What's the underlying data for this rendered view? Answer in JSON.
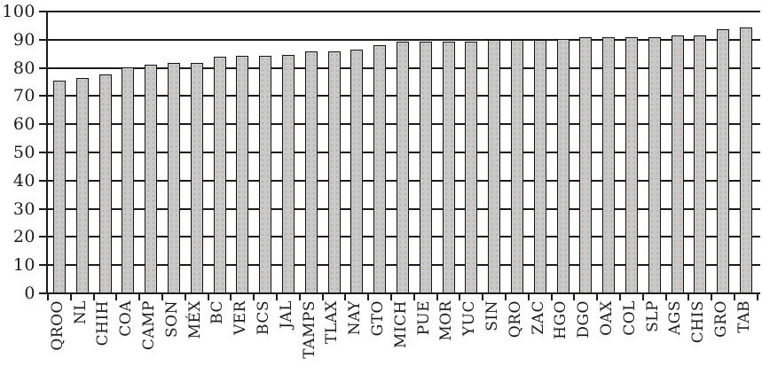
{
  "chart_data": {
    "type": "bar",
    "title": "",
    "xlabel": "",
    "ylabel": "",
    "categories": [
      "QROO",
      "NL",
      "CHIH",
      "COA",
      "CAMP",
      "SON",
      "MÉX",
      "BC",
      "VER",
      "BCS",
      "JAL",
      "TAMPS",
      "TLAX",
      "NAY",
      "GTO",
      "MICH",
      "PUE",
      "MOR",
      "YUC",
      "SIN",
      "QRO",
      "ZAC",
      "HGO",
      "DGO",
      "OAX",
      "COL",
      "SLP",
      "AGS",
      "CHIS",
      "GRO",
      "TAB"
    ],
    "values": [
      75.6,
      76.3,
      77.8,
      80.1,
      81.1,
      81.8,
      81.8,
      83.9,
      84.4,
      84.4,
      84.7,
      85.9,
      85.9,
      86.5,
      88.0,
      89.2,
      89.2,
      89.2,
      89.3,
      89.8,
      89.9,
      89.9,
      90.4,
      91.0,
      91.0,
      90.9,
      90.8,
      91.6,
      91.6,
      93.7,
      94.3
    ],
    "ylim": [
      0,
      100
    ],
    "yticks": [
      0,
      10,
      20,
      30,
      40,
      50,
      60,
      70,
      80,
      90,
      100
    ],
    "grid": "horizontal",
    "legend": "none",
    "x_labels_rotated_90": true,
    "colors": {
      "bar_fill": "#c9c9cc",
      "bar_border": "#141414",
      "axis_and_grid": "#1b1b1b",
      "text": "#1b1b1b",
      "background": "#ffffff"
    }
  }
}
